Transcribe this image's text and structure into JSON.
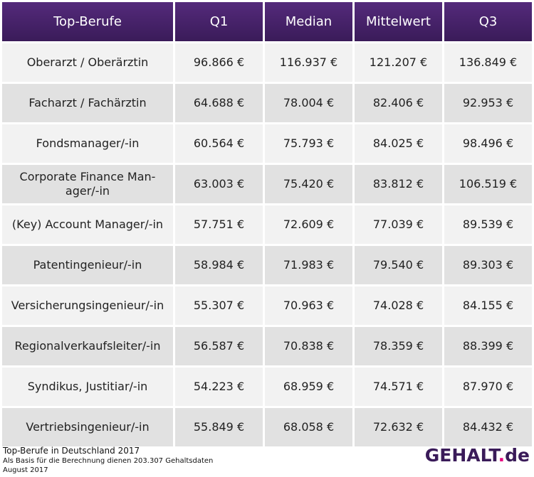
{
  "chart_data": {
    "type": "table",
    "columns": [
      "Top-Berufe",
      "Q1",
      "Median",
      "Mittelwert",
      "Q3"
    ],
    "rows": [
      [
        "Oberarzt / Oberärztin",
        "96.866 €",
        "116.937 €",
        "121.207 €",
        "136.849 €"
      ],
      [
        "Facharzt / Fachärztin",
        "64.688 €",
        "78.004 €",
        "82.406 €",
        "92.953 €"
      ],
      [
        "Fondsmanager/-in",
        "60.564 €",
        "75.793 €",
        "84.025 €",
        "98.496 €"
      ],
      [
        "Corporate Finance Man-ager/-in",
        "63.003 €",
        "75.420 €",
        "83.812 €",
        "106.519 €"
      ],
      [
        "(Key) Account Manager/-in",
        "57.751 €",
        "72.609 €",
        "77.039 €",
        "89.539 €"
      ],
      [
        "Patentingenieur/-in",
        "58.984 €",
        "71.983 €",
        "79.540 €",
        "89.303 €"
      ],
      [
        "Versicherungsingenieur/-in",
        "55.307 €",
        "70.963 €",
        "74.028 €",
        "84.155 €"
      ],
      [
        "Regionalverkaufsleiter/-in",
        "56.587 €",
        "70.838 €",
        "78.359 €",
        "88.399 €"
      ],
      [
        "Syndikus, Justitiar/-in",
        "54.223 €",
        "68.959 €",
        "74.571 €",
        "87.970 €"
      ],
      [
        "Vertriebsingenieur/-in",
        "55.849 €",
        "68.058 €",
        "72.632 €",
        "84.432 €"
      ]
    ]
  },
  "footer": {
    "title": "Top-Berufe in Deutschland 2017",
    "basis": "Als Basis für die Berechnung dienen 203.307 Gehaltsdaten",
    "date": "August 2017"
  },
  "logo": {
    "main": "GEHALT",
    "dot": ".",
    "tld": "de"
  },
  "colors": {
    "header": "#3a1b59",
    "accent": "#e6007e",
    "row_light": "#f2f2f2",
    "row_dark": "#e1e1e1"
  }
}
